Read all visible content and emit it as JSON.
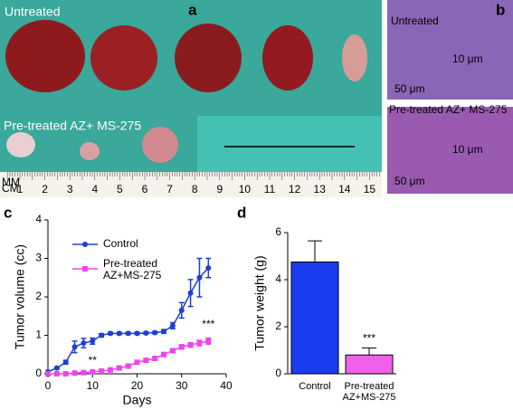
{
  "panels": {
    "a": {
      "letter": "a",
      "top_label": "Untreated",
      "bottom_label": "Pre-treated AZ+ MS-275",
      "ruler_units": [
        "MM",
        "CM"
      ],
      "ruler_numbers": [
        "1",
        "2",
        "3",
        "4",
        "5",
        "6",
        "7",
        "8",
        "9",
        "10",
        "11",
        "12",
        "13",
        "14",
        "15"
      ]
    },
    "b": {
      "letter": "b",
      "top_label": "Untreated",
      "top_scale_large": "50 μm",
      "top_scale_small": "10 μm",
      "bottom_label": "Pre-treated AZ+ MS-275",
      "bottom_scale_large": "50 μm",
      "bottom_scale_small": "10 μm"
    },
    "c": {
      "letter": "c"
    },
    "d": {
      "letter": "d"
    }
  },
  "chart_data": [
    {
      "type": "line",
      "xlabel": "Days",
      "ylabel": "Tumor volume (cc)",
      "x": [
        0,
        2,
        4,
        6,
        8,
        10,
        12,
        14,
        16,
        18,
        20,
        22,
        24,
        26,
        28,
        30,
        32,
        34,
        36
      ],
      "series": [
        {
          "name": "Control",
          "color": "#1f3fd0",
          "marker": "circle",
          "values": [
            0.05,
            0.15,
            0.3,
            0.7,
            0.8,
            0.85,
            1.0,
            1.05,
            1.05,
            1.05,
            1.05,
            1.06,
            1.07,
            1.1,
            1.25,
            1.65,
            2.1,
            2.5,
            2.75
          ],
          "errors": [
            0.02,
            0.03,
            0.05,
            0.15,
            0.12,
            0.08,
            0.04,
            0.03,
            0.03,
            0.03,
            0.03,
            0.03,
            0.03,
            0.05,
            0.08,
            0.2,
            0.35,
            0.5,
            0.25
          ]
        },
        {
          "name": "Pre-treated AZ+MS-275",
          "color": "#ee44ee",
          "marker": "square",
          "values": [
            0,
            0,
            0,
            0.02,
            0.03,
            0.05,
            0.07,
            0.1,
            0.15,
            0.2,
            0.3,
            0.35,
            0.4,
            0.5,
            0.6,
            0.7,
            0.75,
            0.8,
            0.85
          ],
          "errors": [
            0,
            0,
            0,
            0.01,
            0.01,
            0.02,
            0.02,
            0.02,
            0.03,
            0.03,
            0.04,
            0.04,
            0.05,
            0.05,
            0.05,
            0.06,
            0.06,
            0.07,
            0.08
          ]
        }
      ],
      "annotations": [
        "**",
        "***"
      ],
      "xlim": [
        0,
        40
      ],
      "xticks": [
        0,
        10,
        20,
        30,
        40
      ],
      "ylim": [
        0,
        4
      ],
      "yticks": [
        0,
        1,
        2,
        3,
        4
      ]
    },
    {
      "type": "bar",
      "ylabel": "Tumor weight (g)",
      "categories": [
        "Control",
        "Pre-treated AZ+MS-275"
      ],
      "values": [
        4.75,
        0.8
      ],
      "errors": [
        0.9,
        0.3
      ],
      "colors": [
        "#1a3cf0",
        "#f060e8"
      ],
      "annotations": [
        "***"
      ],
      "ylim": [
        0,
        6
      ],
      "yticks": [
        0,
        2,
        4,
        6
      ]
    }
  ]
}
